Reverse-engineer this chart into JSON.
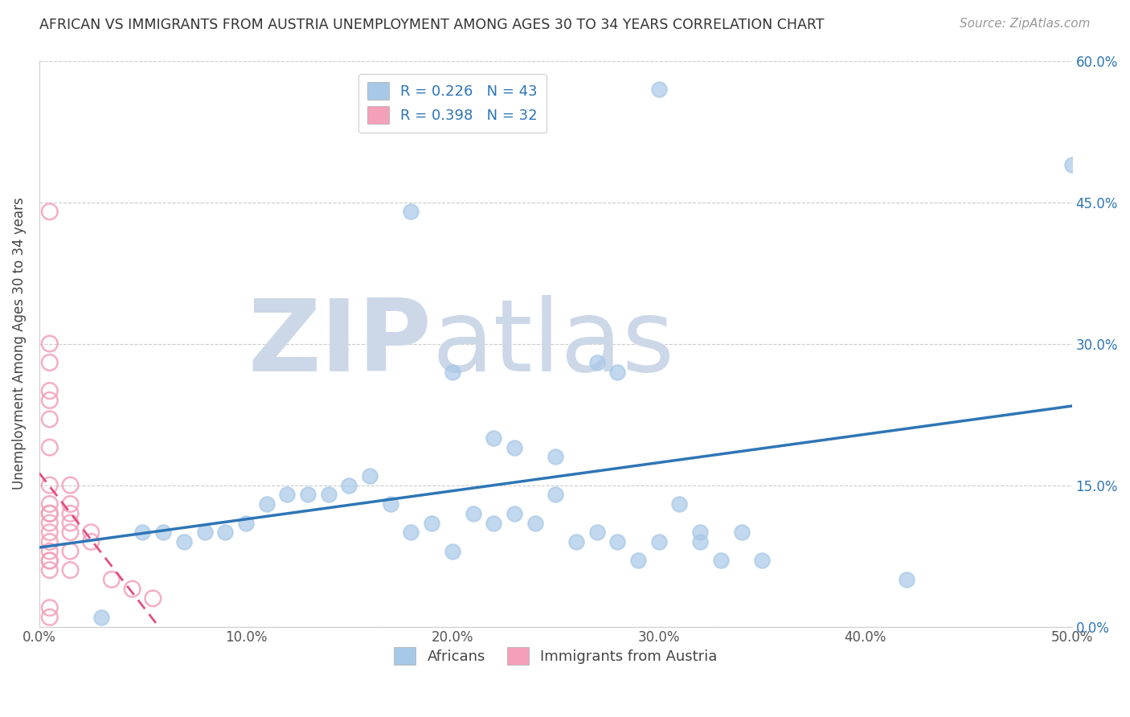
{
  "title": "AFRICAN VS IMMIGRANTS FROM AUSTRIA UNEMPLOYMENT AMONG AGES 30 TO 34 YEARS CORRELATION CHART",
  "source": "Source: ZipAtlas.com",
  "ylabel": "Unemployment Among Ages 30 to 34 years",
  "xlim": [
    0.0,
    0.5
  ],
  "ylim": [
    0.0,
    0.6
  ],
  "xticks": [
    0.0,
    0.1,
    0.2,
    0.3,
    0.4,
    0.5
  ],
  "yticks": [
    0.0,
    0.15,
    0.3,
    0.45,
    0.6
  ],
  "xtick_labels": [
    "0.0%",
    "10.0%",
    "20.0%",
    "30.0%",
    "40.0%",
    "50.0%"
  ],
  "ytick_labels_right": [
    "0.0%",
    "15.0%",
    "30.0%",
    "45.0%",
    "60.0%"
  ],
  "R_blue": 0.226,
  "N_blue": 43,
  "R_pink": 0.398,
  "N_pink": 32,
  "blue_color": "#a8c8e8",
  "blue_line_color": "#2e75b6",
  "pink_color": "#f4a0b8",
  "pink_line_color": "#e05080",
  "watermark_zip": "ZIP",
  "watermark_atlas": "atlas",
  "watermark_color": "#ccd8e8",
  "blue_scatter_x": [
    0.3,
    0.5,
    0.18,
    0.27,
    0.28,
    0.05,
    0.06,
    0.07,
    0.08,
    0.09,
    0.1,
    0.11,
    0.12,
    0.13,
    0.14,
    0.15,
    0.16,
    0.17,
    0.18,
    0.19,
    0.2,
    0.21,
    0.22,
    0.23,
    0.24,
    0.25,
    0.26,
    0.27,
    0.28,
    0.29,
    0.3,
    0.31,
    0.32,
    0.33,
    0.34,
    0.35,
    0.22,
    0.23,
    0.42,
    0.03,
    0.2,
    0.25,
    0.32
  ],
  "blue_scatter_y": [
    0.57,
    0.49,
    0.44,
    0.28,
    0.27,
    0.1,
    0.1,
    0.09,
    0.1,
    0.1,
    0.11,
    0.13,
    0.14,
    0.14,
    0.14,
    0.15,
    0.16,
    0.13,
    0.1,
    0.11,
    0.08,
    0.12,
    0.11,
    0.12,
    0.11,
    0.14,
    0.09,
    0.1,
    0.09,
    0.07,
    0.09,
    0.13,
    0.1,
    0.07,
    0.1,
    0.07,
    0.2,
    0.19,
    0.05,
    0.01,
    0.27,
    0.18,
    0.09
  ],
  "pink_scatter_x": [
    0.005,
    0.005,
    0.005,
    0.005,
    0.005,
    0.005,
    0.005,
    0.005,
    0.005,
    0.005,
    0.005,
    0.005,
    0.005,
    0.005,
    0.005,
    0.005,
    0.005,
    0.005,
    0.015,
    0.015,
    0.015,
    0.015,
    0.015,
    0.015,
    0.025,
    0.025,
    0.035,
    0.045,
    0.055,
    0.015,
    0.005,
    0.005
  ],
  "pink_scatter_y": [
    0.44,
    0.3,
    0.28,
    0.25,
    0.24,
    0.22,
    0.19,
    0.15,
    0.13,
    0.12,
    0.12,
    0.11,
    0.1,
    0.09,
    0.08,
    0.07,
    0.07,
    0.06,
    0.13,
    0.12,
    0.11,
    0.1,
    0.08,
    0.06,
    0.1,
    0.09,
    0.05,
    0.04,
    0.03,
    0.15,
    0.02,
    0.01
  ],
  "legend_labels": [
    "Africans",
    "Immigrants from Austria"
  ],
  "background_color": "#ffffff",
  "grid_color": "#cccccc"
}
